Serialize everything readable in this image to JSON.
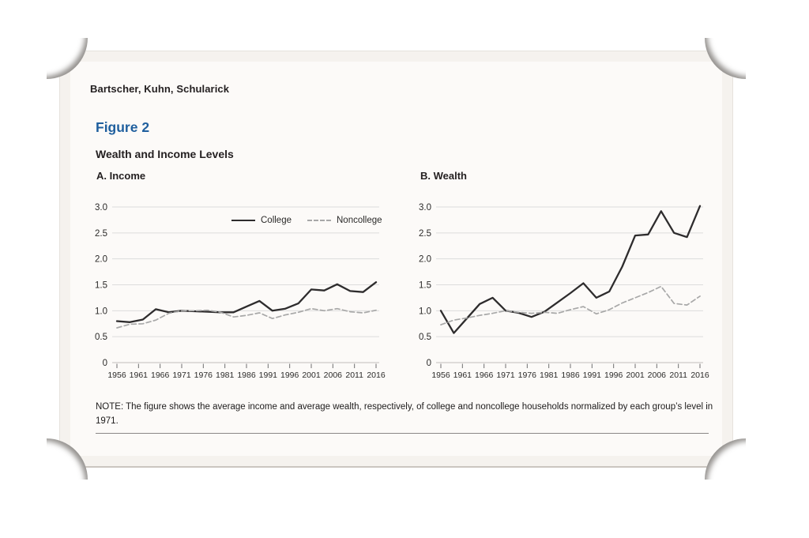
{
  "page": {
    "author_line": "Bartscher, Kuhn, Schularick",
    "figure_label": "Figure 2",
    "figure_title": "Wealth and Income Levels",
    "note": "NOTE: The figure shows the average income and average wealth, respectively, of college and noncollege households normalized by each group’s level in 1971.",
    "accent_color": "#1f5f9e"
  },
  "legend": {
    "items": [
      {
        "label": "College",
        "style": "solid",
        "color": "#2e2c2d"
      },
      {
        "label": "Noncollege",
        "style": "dashed",
        "color": "#a8a8a8"
      }
    ]
  },
  "chart_data": [
    {
      "id": "income",
      "type": "line",
      "title": "A. Income",
      "xlabel": "",
      "ylabel": "",
      "xlim": [
        1956,
        2016
      ],
      "ylim": [
        0,
        3
      ],
      "grid": true,
      "legend_position": "inside-top, panel A only",
      "x": [
        1956,
        1959,
        1962,
        1965,
        1968,
        1971,
        1974,
        1977,
        1980,
        1983,
        1986,
        1989,
        1992,
        1995,
        1998,
        2001,
        2004,
        2007,
        2010,
        2013,
        2016
      ],
      "xticks": [
        1956,
        1961,
        1966,
        1971,
        1976,
        1981,
        1986,
        1991,
        1996,
        2001,
        2006,
        2011,
        2016
      ],
      "xtick_labels": [
        "1956",
        "1961",
        "1966",
        "1971",
        "1976",
        "1981",
        "1986",
        "1991",
        "1996",
        "2001",
        "2006",
        "2011",
        "2016"
      ],
      "yticks": [
        0,
        0.5,
        1,
        1.5,
        2,
        2.5,
        3
      ],
      "ytick_labels": [
        "0",
        "0.5",
        "1.0",
        "1.5",
        "2.0",
        "2.5",
        "3.0"
      ],
      "series": [
        {
          "name": "College",
          "color": "#2e2c2d",
          "width": 2.3,
          "dash": "",
          "values": [
            0.8,
            0.78,
            0.83,
            1.03,
            0.97,
            1.0,
            0.99,
            0.98,
            0.97,
            0.97,
            1.08,
            1.19,
            1.0,
            1.04,
            1.14,
            1.41,
            1.39,
            1.51,
            1.38,
            1.36,
            1.55
          ]
        },
        {
          "name": "Noncollege",
          "color": "#a8a8a8",
          "width": 1.7,
          "dash": "6 3.5",
          "values": [
            0.67,
            0.74,
            0.75,
            0.82,
            0.95,
            1.0,
            1.0,
            1.01,
            0.97,
            0.88,
            0.91,
            0.96,
            0.85,
            0.92,
            0.97,
            1.04,
            1.0,
            1.04,
            0.98,
            0.96,
            1.01
          ]
        }
      ]
    },
    {
      "id": "wealth",
      "type": "line",
      "title": "B. Wealth",
      "xlabel": "",
      "ylabel": "",
      "xlim": [
        1956,
        2016
      ],
      "ylim": [
        0,
        3
      ],
      "grid": true,
      "x": [
        1956,
        1959,
        1962,
        1965,
        1968,
        1971,
        1974,
        1977,
        1980,
        1983,
        1986,
        1989,
        1992,
        1995,
        1998,
        2001,
        2004,
        2007,
        2010,
        2013,
        2016
      ],
      "xticks": [
        1956,
        1961,
        1966,
        1971,
        1976,
        1981,
        1986,
        1991,
        1996,
        2001,
        2006,
        2011,
        2016
      ],
      "xtick_labels": [
        "1956",
        "1961",
        "1966",
        "1971",
        "1976",
        "1981",
        "1986",
        "1991",
        "1996",
        "2001",
        "2006",
        "2011",
        "2016"
      ],
      "yticks": [
        0,
        0.5,
        1,
        1.5,
        2,
        2.5,
        3
      ],
      "ytick_labels": [
        "0",
        "0.5",
        "1.0",
        "1.5",
        "2.0",
        "2.5",
        "3.0"
      ],
      "series": [
        {
          "name": "College",
          "color": "#2e2c2d",
          "width": 2.3,
          "dash": "",
          "values": [
            1.0,
            0.57,
            0.85,
            1.13,
            1.25,
            1.0,
            0.96,
            0.88,
            0.98,
            1.16,
            1.34,
            1.53,
            1.25,
            1.37,
            1.85,
            2.45,
            2.47,
            2.92,
            2.5,
            2.42,
            3.02
          ]
        },
        {
          "name": "Noncollege",
          "color": "#a8a8a8",
          "width": 1.7,
          "dash": "6 3.5",
          "values": [
            0.73,
            0.82,
            0.86,
            0.91,
            0.95,
            1.0,
            0.97,
            0.95,
            0.97,
            0.95,
            1.02,
            1.08,
            0.94,
            1.02,
            1.15,
            1.25,
            1.35,
            1.47,
            1.14,
            1.11,
            1.28
          ]
        }
      ]
    }
  ]
}
